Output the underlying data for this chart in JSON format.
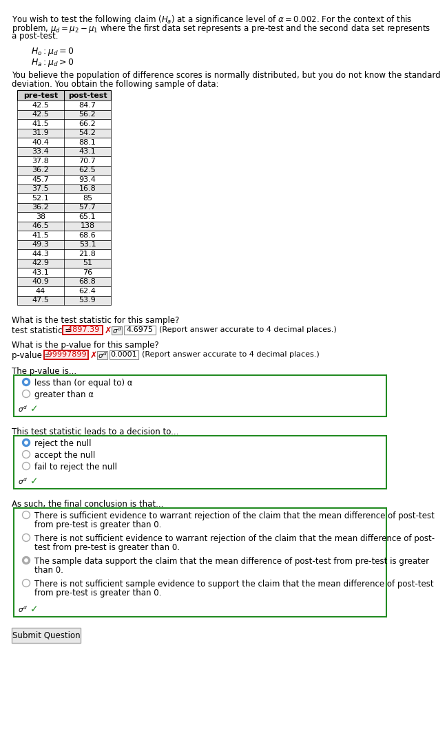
{
  "pre_test": [
    42.5,
    42.5,
    41.5,
    31.9,
    40.4,
    33.4,
    37.8,
    36.2,
    45.7,
    37.5,
    52.1,
    36.2,
    38,
    46.5,
    41.5,
    49.3,
    44.3,
    42.9,
    43.1,
    40.9,
    44,
    47.5
  ],
  "post_test": [
    84.7,
    56.2,
    66.2,
    54.2,
    88.1,
    43.1,
    70.7,
    62.5,
    93.4,
    16.8,
    85,
    57.7,
    65.1,
    138,
    68.6,
    53.1,
    21.8,
    51,
    76,
    68.8,
    62.4,
    53.9
  ],
  "test_stat_wrong": "-4897.39",
  "test_stat_correct": "4.6975",
  "pvalue_wrong": ".99997899",
  "pvalue_correct": "0.0001",
  "pvalue_options": [
    "less than (or equal to) α",
    "greater than α"
  ],
  "pvalue_selected": 0,
  "decision_options": [
    "reject the null",
    "accept the null",
    "fail to reject the null"
  ],
  "decision_selected": 0,
  "conclusion_options": [
    "There is sufficient evidence to warrant rejection of the claim that the mean difference of post-test\nfrom pre-test is greater than 0.",
    "There is not sufficient evidence to warrant rejection of the claim that the mean difference of post-\ntest from pre-test is greater than 0.",
    "The sample data support the claim that the mean difference of post-test from pre-test is greater\nthan 0.",
    "There is not sufficient sample evidence to support the claim that the mean difference of post-test\nfrom pre-test is greater than 0."
  ],
  "conclusion_selected": 2,
  "bg_color": "#ffffff",
  "box_border_color": "#228B22",
  "wrong_text_color": "#cc0000",
  "table_header_bg": "#d3d3d3",
  "table_row_bg1": "#ffffff",
  "table_row_bg2": "#e8e8e8",
  "radio_selected_color": "#4a90d9",
  "radio_unselected_color": "#aaaaaa"
}
